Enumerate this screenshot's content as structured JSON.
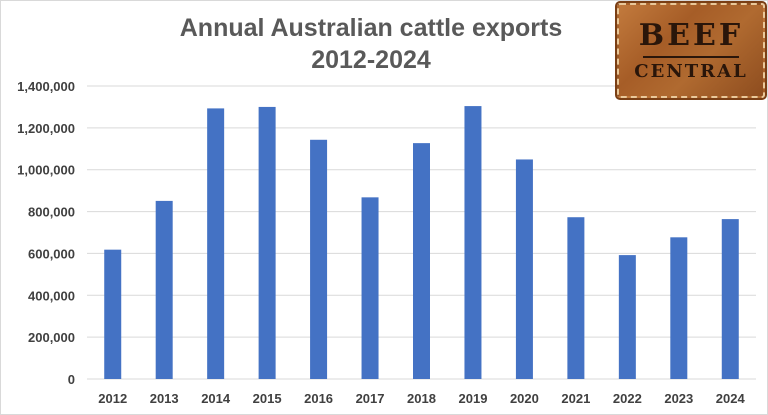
{
  "chart_data": {
    "type": "bar",
    "title_lines": [
      "Annual Australian cattle exports",
      "2012-2024"
    ],
    "categories": [
      "2012",
      "2013",
      "2014",
      "2015",
      "2016",
      "2017",
      "2018",
      "2019",
      "2020",
      "2021",
      "2022",
      "2023",
      "2024"
    ],
    "values": [
      618000,
      851000,
      1293000,
      1300000,
      1143000,
      868000,
      1127000,
      1304000,
      1049000,
      773000,
      592000,
      677000,
      764000
    ],
    "ylim": [
      0,
      1400000
    ],
    "y_ticks": [
      "0",
      "200,000",
      "400,000",
      "600,000",
      "800,000",
      "1,000,000",
      "1,200,000",
      "1,400,000"
    ],
    "xlabel": "",
    "ylabel": "",
    "grid": true,
    "legend": false,
    "bar_color": "#4472c4"
  },
  "logo": {
    "line1": "BEEF",
    "line2": "CENTRAL"
  }
}
